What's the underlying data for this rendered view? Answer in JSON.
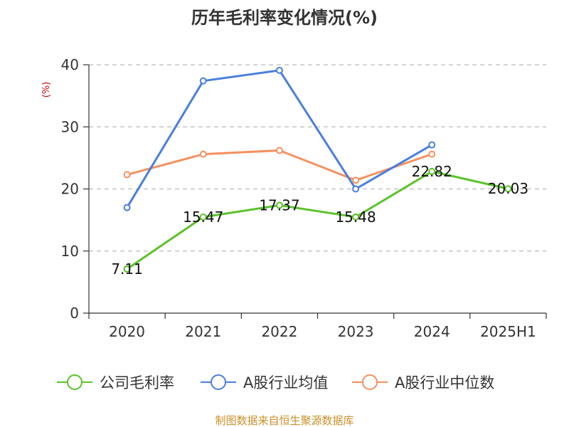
{
  "chart_data": {
    "type": "line",
    "title": "历年毛利率变化情况(%)",
    "ylabel": "(%)",
    "xlabel": "",
    "categories": [
      "2020",
      "2021",
      "2022",
      "2023",
      "2024",
      "2025H1"
    ],
    "ylim": [
      0,
      40
    ],
    "yticks": [
      0,
      10,
      20,
      30,
      40
    ],
    "grid": true,
    "legend_position": "bottom",
    "series": [
      {
        "name": "公司毛利率",
        "color": "#5cc22a",
        "values": [
          7.11,
          15.47,
          17.37,
          15.48,
          22.82,
          20.03
        ],
        "labels": [
          "7.11",
          "15.47",
          "17.37",
          "15.48",
          "22.82",
          "20.03"
        ]
      },
      {
        "name": "A股行业均值",
        "color": "#4a7fdd",
        "values": [
          17.0,
          37.4,
          39.1,
          20.0,
          27.1,
          null
        ]
      },
      {
        "name": "A股行业中位数",
        "color": "#f59060",
        "values": [
          22.3,
          25.6,
          26.2,
          21.4,
          25.6,
          null
        ]
      }
    ]
  },
  "footer": {
    "source": "制图数据来自恒生聚源数据库"
  }
}
